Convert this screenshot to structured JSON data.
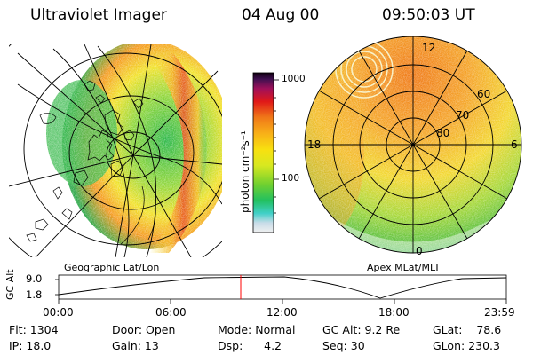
{
  "header": {
    "instrument": "Ultraviolet Imager",
    "date": "04 Aug 00",
    "time": "09:50:03 UT"
  },
  "left_panel": {
    "label": "Geographic Lat/Lon"
  },
  "right_panel": {
    "label": "Apex MLat/MLT",
    "mlt_labels": [
      "12",
      "18",
      "6",
      "0"
    ],
    "lat_labels": [
      "60",
      "70",
      "80"
    ]
  },
  "colorbar": {
    "unit_label": "photon cm⁻²s⁻¹",
    "ticks": [
      "1000",
      "100"
    ],
    "scale": "log"
  },
  "timeline": {
    "ylabel": "GC Alt",
    "yticks": [
      "9.0",
      "1.8"
    ],
    "xticks": [
      "00:00",
      "06:00",
      "12:00",
      "18:00",
      "23:59"
    ],
    "cursor_time": "09:50:03"
  },
  "footer": {
    "flt": "Flt: 1304",
    "ip": "IP: 18.0",
    "door": "Door: Open",
    "gain": "Gain: 13",
    "mode": "Mode: Normal",
    "dsp": "Dsp:      4.2",
    "gcalt": "GC Alt: 9.2 Re",
    "seq": "Seq: 30",
    "glat": "GLat:    78.6",
    "glon": "GLon: 230.3"
  },
  "colors": {
    "cursor": "#ff0000",
    "emission_low": "#22c044",
    "emission_mid": "#f0e020",
    "emission_high": "#e84010"
  }
}
